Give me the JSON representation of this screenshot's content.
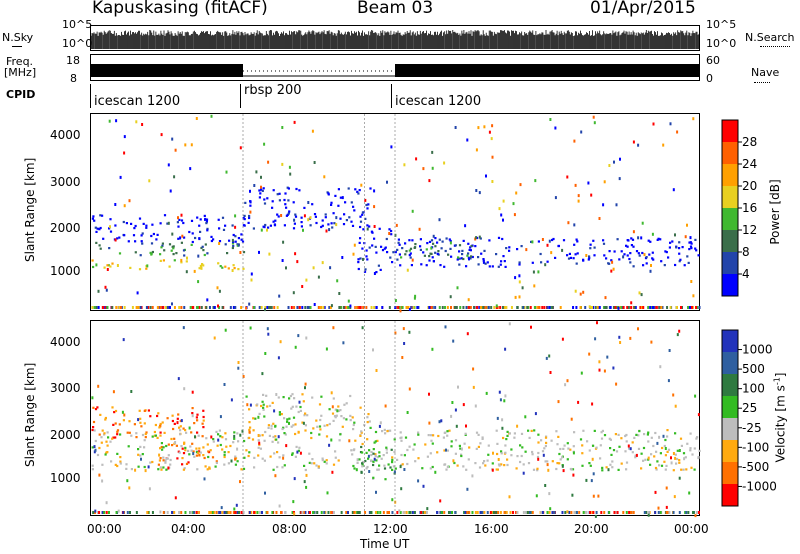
{
  "header": {
    "station": "Kapuskasing (fitACF)",
    "beam": "Beam 03",
    "date": "01/Apr/2015"
  },
  "params": {
    "nsky_label": "N.Sky",
    "nsky_top": "10^5",
    "nsky_bot": "10^0",
    "nsearch_label": "N.Search",
    "nsearch_top": "10^5",
    "nsearch_bot": "10^0",
    "freq_label_1": "Freq.",
    "freq_label_2": "[MHz]",
    "freq_top": "18",
    "freq_bot": "8",
    "nave_label": "Nave",
    "nave_top": "60",
    "nave_bot": "0",
    "cpid_label": "CPID",
    "cpid_segments": [
      {
        "name": "icescan 1200",
        "start_hour": 0
      },
      {
        "name": "rbsp 200",
        "start_hour": 6
      },
      {
        "name": "icescan 1200",
        "start_hour": 12
      }
    ]
  },
  "colors": {
    "power": [
      "#0000ff",
      "#2244aa",
      "#3a6e4a",
      "#40b830",
      "#e8d020",
      "#ffa000",
      "#ff6000",
      "#ff0000"
    ],
    "velocity": [
      "#2233bb",
      "#2f5fa0",
      "#2f7a40",
      "#33bb22",
      "#bdbdbd",
      "#ffaa10",
      "#ff7000",
      "#ff0000"
    ]
  },
  "chart_data": [
    {
      "type": "heatmap",
      "title": "Power",
      "xlabel": "",
      "ylabel": "Slant Range [km]",
      "ylim": [
        180,
        4500
      ],
      "xlim_hours": [
        0,
        24
      ],
      "yticks": [
        1000,
        2000,
        3000,
        4000
      ],
      "colorbar_label": "Power [dB]",
      "colorbar_ticks": [
        4,
        8,
        12,
        16,
        20,
        24,
        28
      ],
      "colorbar_range": [
        0,
        32
      ],
      "bands": [
        {
          "hours": [
            0,
            6
          ],
          "range_km": [
            1100,
            1300
          ],
          "level": "yellow"
        },
        {
          "hours": [
            0,
            6
          ],
          "range_km": [
            1400,
            1700
          ],
          "level": "green"
        },
        {
          "hours": [
            0,
            6
          ],
          "range_km": [
            1700,
            2300
          ],
          "level": "blue"
        },
        {
          "hours": [
            6,
            11
          ],
          "range_km": [
            2000,
            2900
          ],
          "level": "blue"
        },
        {
          "hours": [
            10.5,
            12
          ],
          "range_km": [
            1000,
            2000
          ],
          "level": "blue"
        },
        {
          "hours": [
            12,
            24
          ],
          "range_km": [
            1150,
            1800
          ],
          "level": "blue"
        },
        {
          "hours": [
            12,
            15
          ],
          "range_km": [
            1300,
            1700
          ],
          "level": "green"
        }
      ]
    },
    {
      "type": "heatmap",
      "title": "Velocity",
      "xlabel": "Time UT",
      "ylabel": "Slant Range [km]",
      "ylim": [
        180,
        4500
      ],
      "xlim_hours": [
        0,
        24
      ],
      "yticks": [
        1000,
        2000,
        3000,
        4000
      ],
      "xtick_labels": [
        "00:00",
        "04:00",
        "08:00",
        "12:00",
        "16:00",
        "20:00",
        "00:00"
      ],
      "colorbar_label": "Velocity [m s^-1]",
      "colorbar_ticks": [
        1000,
        500,
        100,
        25,
        -25,
        -100,
        -500,
        -1000
      ],
      "bands": [
        {
          "hours": [
            0,
            4.5
          ],
          "range_km": [
            1900,
            2600
          ],
          "level": "orange"
        },
        {
          "hours": [
            2.5,
            5
          ],
          "range_km": [
            1300,
            1800
          ],
          "level": "orange"
        },
        {
          "hours": [
            0,
            24
          ],
          "range_km": [
            1200,
            2100
          ],
          "level": "grey"
        },
        {
          "hours": [
            6,
            11
          ],
          "range_km": [
            2000,
            2900
          ],
          "level": "grey"
        },
        {
          "hours": [
            10.5,
            12
          ],
          "range_km": [
            1000,
            1800
          ],
          "level": "green"
        }
      ]
    }
  ]
}
